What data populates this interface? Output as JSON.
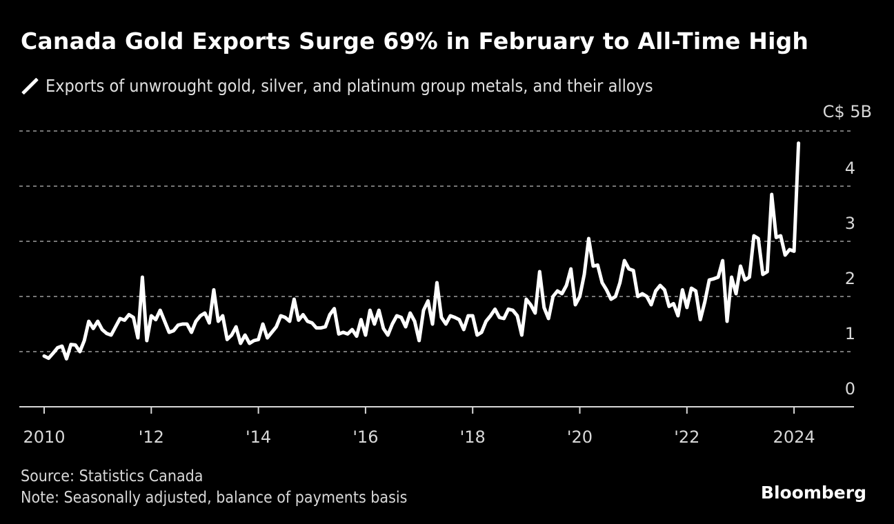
{
  "title": "Canada Gold Exports Surge 69% in February to All-Time High",
  "legend": {
    "icon": "line-swatch-icon",
    "label": "Exports of unwrought gold, silver, and platinum group metals, and their alloys"
  },
  "source": "Source: Statistics Canada",
  "note": "Note: Seasonally adjusted, balance of payments basis",
  "brand": "Bloomberg",
  "colors": {
    "background": "#000000",
    "line": "#ffffff",
    "grid": "#777777",
    "text": "#d8d8d8"
  },
  "chart_data": {
    "type": "line",
    "title": "Canada Gold Exports Surge 69% in February to All-Time High",
    "xlabel": "",
    "ylabel": "C$ billions",
    "y_unit_label": "C$ 5B",
    "ylim": [
      0,
      5
    ],
    "y_ticks": [
      {
        "value": 0,
        "label": "0"
      },
      {
        "value": 1,
        "label": "1"
      },
      {
        "value": 2,
        "label": "2"
      },
      {
        "value": 3,
        "label": "3"
      },
      {
        "value": 4,
        "label": "4"
      },
      {
        "value": 5,
        "label": "C$ 5B"
      }
    ],
    "x_range": [
      2010.0,
      2024.167
    ],
    "x_display_range": [
      2009.55,
      2025.0
    ],
    "x_ticks": [
      {
        "value": 2010,
        "label": "2010"
      },
      {
        "value": 2012,
        "label": "'12"
      },
      {
        "value": 2014,
        "label": "'14"
      },
      {
        "value": 2016,
        "label": "'16"
      },
      {
        "value": 2018,
        "label": "'18"
      },
      {
        "value": 2020,
        "label": "'20"
      },
      {
        "value": 2022,
        "label": "'22"
      },
      {
        "value": 2024,
        "label": "2024"
      }
    ],
    "grid": "horizontal dotted",
    "legend_position": "top-left",
    "series": [
      {
        "name": "Exports of unwrought gold, silver, and platinum group metals, and their alloys",
        "start": "2010-01",
        "frequency": "monthly",
        "values": [
          0.92,
          0.88,
          0.97,
          1.07,
          1.1,
          0.87,
          1.13,
          1.12,
          1.0,
          1.2,
          1.55,
          1.42,
          1.55,
          1.4,
          1.33,
          1.3,
          1.45,
          1.6,
          1.57,
          1.67,
          1.62,
          1.25,
          2.35,
          1.2,
          1.65,
          1.58,
          1.75,
          1.55,
          1.35,
          1.38,
          1.48,
          1.5,
          1.5,
          1.35,
          1.55,
          1.65,
          1.7,
          1.52,
          2.12,
          1.55,
          1.65,
          1.22,
          1.3,
          1.45,
          1.15,
          1.3,
          1.15,
          1.2,
          1.22,
          1.5,
          1.25,
          1.35,
          1.45,
          1.65,
          1.62,
          1.55,
          1.95,
          1.57,
          1.67,
          1.55,
          1.52,
          1.43,
          1.43,
          1.45,
          1.67,
          1.78,
          1.32,
          1.35,
          1.32,
          1.4,
          1.28,
          1.58,
          1.3,
          1.75,
          1.5,
          1.75,
          1.42,
          1.3,
          1.5,
          1.65,
          1.62,
          1.45,
          1.7,
          1.55,
          1.2,
          1.75,
          1.92,
          1.5,
          2.25,
          1.62,
          1.5,
          1.65,
          1.62,
          1.58,
          1.4,
          1.65,
          1.65,
          1.3,
          1.35,
          1.55,
          1.65,
          1.77,
          1.62,
          1.6,
          1.77,
          1.75,
          1.65,
          1.3,
          1.95,
          1.85,
          1.7,
          2.45,
          1.8,
          1.6,
          2.0,
          2.1,
          2.05,
          2.2,
          2.5,
          1.85,
          2.0,
          2.4,
          3.05,
          2.55,
          2.57,
          2.25,
          2.12,
          1.95,
          2.0,
          2.25,
          2.65,
          2.5,
          2.47,
          2.0,
          2.05,
          2.0,
          1.85,
          2.1,
          2.2,
          2.12,
          1.82,
          1.87,
          1.65,
          2.12,
          1.8,
          2.15,
          2.1,
          1.58,
          1.9,
          2.3,
          2.32,
          2.35,
          2.65,
          1.55,
          2.35,
          2.05,
          2.55,
          2.3,
          2.35,
          3.1,
          3.05,
          2.4,
          2.45,
          3.85,
          3.07,
          3.1,
          2.75,
          2.85,
          2.82,
          4.78
        ]
      }
    ]
  }
}
